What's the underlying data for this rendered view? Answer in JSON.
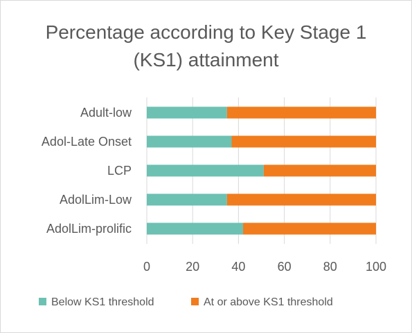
{
  "chart_data": {
    "type": "bar",
    "orientation": "horizontal",
    "stacked": true,
    "title": "Percentage according to Key Stage 1 (KS1) attainment",
    "categories": [
      "Adult-low",
      "Adol-Late Onset",
      "LCP",
      "AdolLim-Low",
      "AdolLim-prolific"
    ],
    "series": [
      {
        "name": "Below KS1 threshold",
        "color": "#6cc1b3",
        "values": [
          35,
          37,
          51,
          35,
          42
        ]
      },
      {
        "name": "At or above KS1 threshold",
        "color": "#f07c1e",
        "values": [
          65,
          63,
          49,
          65,
          58
        ]
      }
    ],
    "xlim": [
      0,
      100
    ],
    "xticks": [
      "0",
      "20",
      "40",
      "60",
      "80",
      "100"
    ],
    "grid": true,
    "legend": "bottom"
  }
}
